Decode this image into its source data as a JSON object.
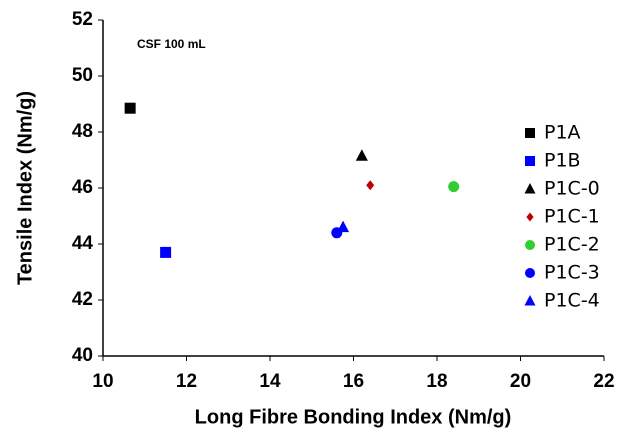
{
  "chart_data": {
    "type": "scatter",
    "annotation": "CSF 100 mL",
    "x_label": "Long Fibre Bonding Index (Nm/g)",
    "y_label": "Tensile Index (Nm/g)",
    "xlim": [
      10,
      22
    ],
    "xticks": [
      10,
      12,
      14,
      16,
      18,
      20,
      22
    ],
    "ylim": [
      40,
      52
    ],
    "yticks": [
      40,
      42,
      44,
      46,
      48,
      50,
      52
    ],
    "grid": false,
    "legend": "right",
    "series": [
      {
        "name": "P1A",
        "color": "#000000",
        "marker": "square",
        "x": [
          10.65
        ],
        "values": [
          48.85
        ]
      },
      {
        "name": "P1B",
        "color": "#0000ff",
        "marker": "square",
        "x": [
          11.5
        ],
        "values": [
          43.7
        ]
      },
      {
        "name": "P1C-0",
        "color": "#000000",
        "marker": "triangle",
        "x": [
          16.2
        ],
        "values": [
          47.15
        ]
      },
      {
        "name": "P1C-1",
        "color": "#c00000",
        "marker": "diamond",
        "x": [
          16.4
        ],
        "values": [
          46.1
        ]
      },
      {
        "name": "P1C-2",
        "color": "#33cc33",
        "marker": "circle",
        "x": [
          18.4
        ],
        "values": [
          46.05
        ]
      },
      {
        "name": "P1C-3",
        "color": "#0000ff",
        "marker": "circle",
        "x": [
          15.6
        ],
        "values": [
          44.4
        ]
      },
      {
        "name": "P1C-4",
        "color": "#0000ff",
        "marker": "triangle",
        "x": [
          15.75
        ],
        "values": [
          44.6
        ]
      }
    ]
  }
}
